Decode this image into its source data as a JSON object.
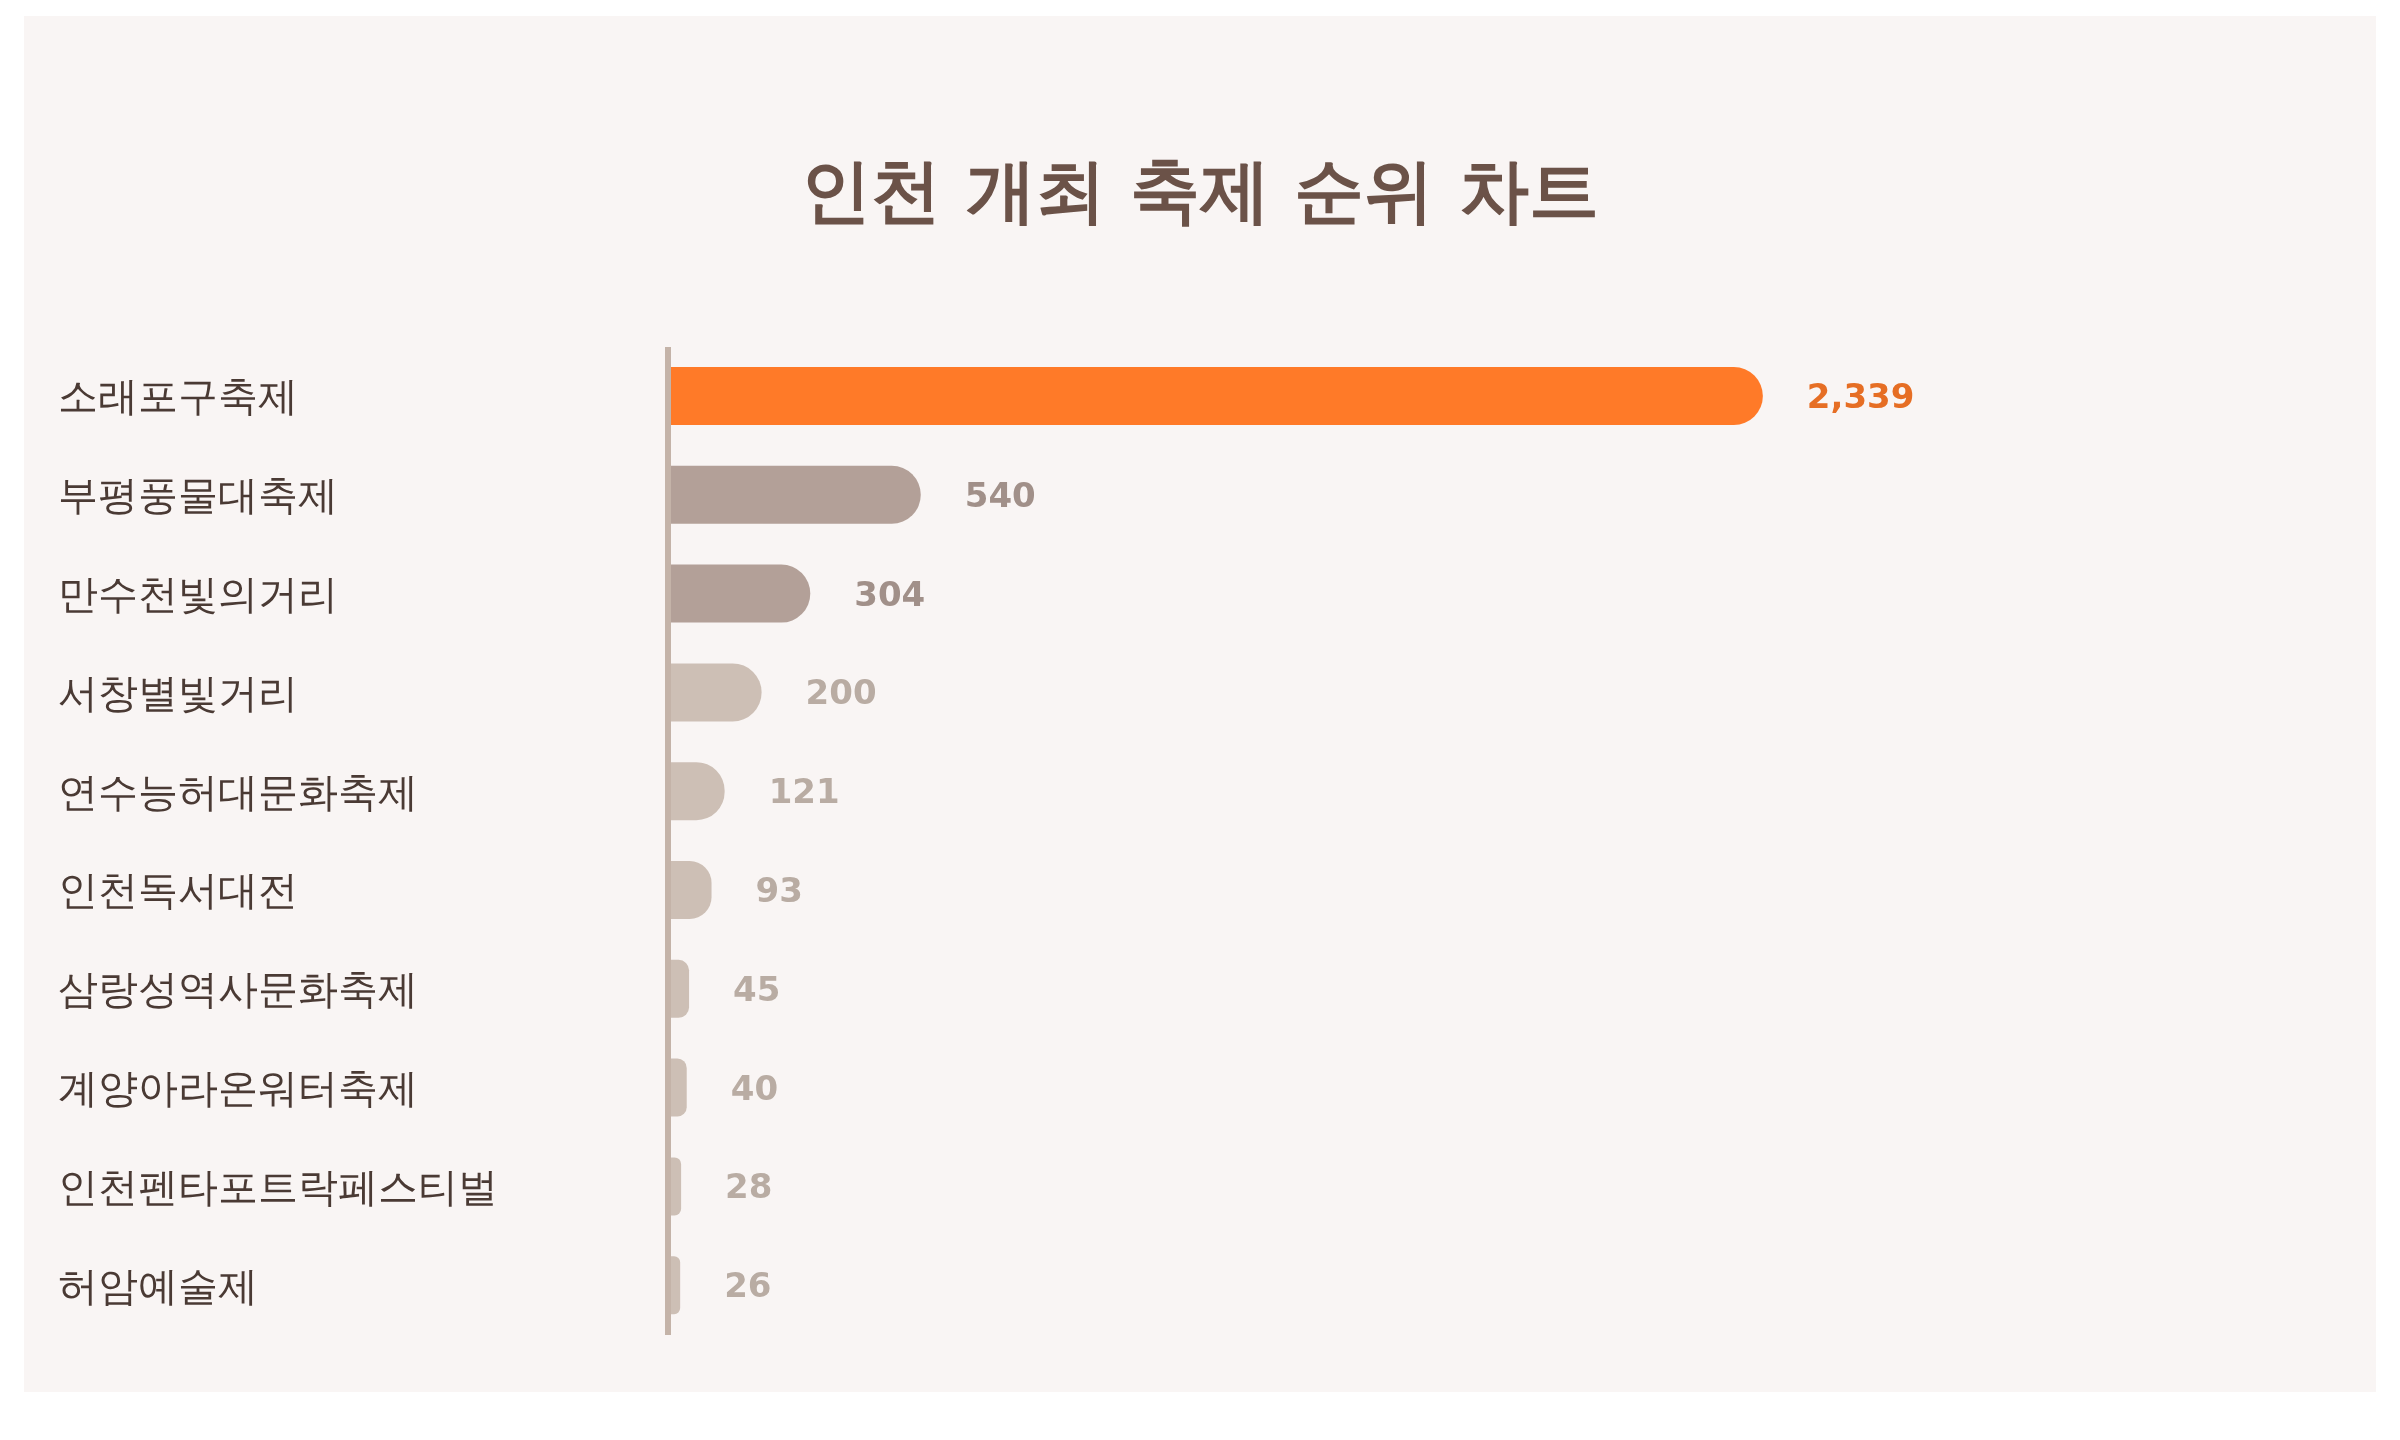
{
  "chart_data": {
    "type": "bar",
    "orientation": "horizontal",
    "title": "인천 개최 축제 순위 차트",
    "categories": [
      "소래포구축제",
      "부평풍물대축제",
      "만수천빛의거리",
      "서창별빛거리",
      "연수능허대문화축제",
      "인천독서대전",
      "삼랑성역사문화축제",
      "계양아라온워터축제",
      "인천펜타포트락페스티벌",
      "허암예술제"
    ],
    "values": [
      2339,
      540,
      304,
      200,
      121,
      93,
      45,
      40,
      28,
      26
    ],
    "colors": [
      "#ff7a28",
      "#b3a098",
      "#b3a098",
      "#cdbfb5",
      "#cdbfb5",
      "#cdbfb5",
      "#cdbfb5",
      "#cdbfb5",
      "#cdbfb5",
      "#cdbfb5"
    ],
    "value_labels": [
      "2,339",
      "540",
      "304",
      "200",
      "121",
      "93",
      "45",
      "40",
      "28",
      "26"
    ]
  }
}
